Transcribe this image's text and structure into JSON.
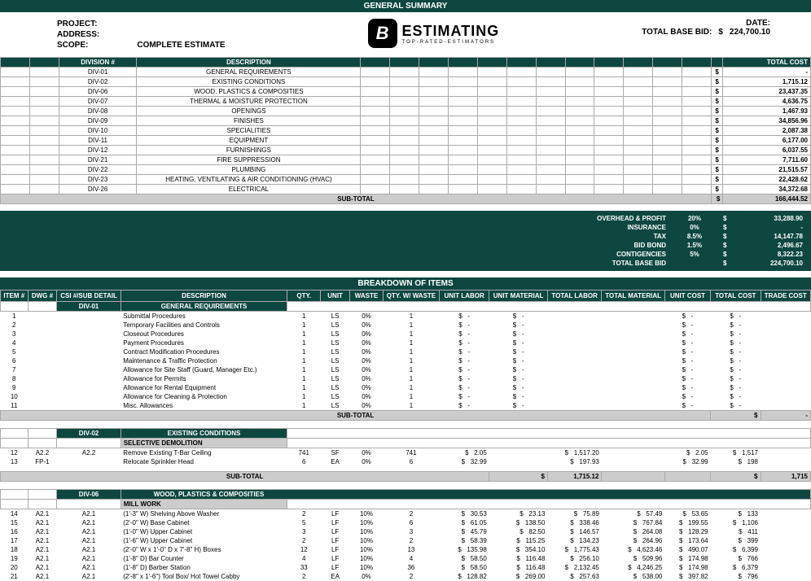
{
  "header": {
    "general_summary": "GENERAL SUMMARY",
    "project_lbl": "PROJECT:",
    "address_lbl": "ADDRESS:",
    "scope_lbl": "SCOPE:",
    "scope_val": "COMPLETE ESTIMATE",
    "logo_main": "ESTIMATING",
    "logo_sub": "TOP-RATED-ESTIMATORS",
    "date_lbl": "DATE:",
    "tbb_lbl": "TOTAL BASE BID:",
    "tbb_dollar": "$",
    "tbb_val": "224,700.10"
  },
  "summary_cols": {
    "division": "DIVISION #",
    "description": "DESCRIPTION",
    "total_cost": "TOTAL COST"
  },
  "summary_rows": [
    {
      "div": "DIV-01",
      "desc": "GENERAL REQUIREMENTS",
      "cost": "-"
    },
    {
      "div": "DIV-02",
      "desc": "EXISTING CONDITIONS",
      "cost": "1,715.12"
    },
    {
      "div": "DIV-06",
      "desc": "WOOD, PLASTICS & COMPOSITIES",
      "cost": "23,437.35"
    },
    {
      "div": "DIV-07",
      "desc": "THERMAL & MOISTURE PROTECTION",
      "cost": "4,636.75"
    },
    {
      "div": "DIV-08",
      "desc": "OPENINGS",
      "cost": "1,467.93"
    },
    {
      "div": "DIV-09",
      "desc": "FINISHES",
      "cost": "34,856.96"
    },
    {
      "div": "DIV-10",
      "desc": "SPECIALITIES",
      "cost": "2,087.38"
    },
    {
      "div": "DIV-11",
      "desc": "EQUIPMENT",
      "cost": "6,177.00"
    },
    {
      "div": "DIV-12",
      "desc": "FURNISHINGS",
      "cost": "6,037.55"
    },
    {
      "div": "DIV-21",
      "desc": "FIRE SUPPRESSION",
      "cost": "7,711.60"
    },
    {
      "div": "DIV-22",
      "desc": "PLUMBING",
      "cost": "21,515.57"
    },
    {
      "div": "DIV-23",
      "desc": "HEATING, VENTILATING & AIR CONDITIONING (HVAC)",
      "cost": "22,428.62"
    },
    {
      "div": "DIV-26",
      "desc": "ELECTRICAL",
      "cost": "34,372.68"
    }
  ],
  "subtotal_lbl": "SUB-TOTAL",
  "summary_subtotal": "166,444.52",
  "adjustments": [
    {
      "lbl": "OVERHEAD & PROFIT",
      "pct": "20%",
      "amt": "33,288.90"
    },
    {
      "lbl": "INSURANCE",
      "pct": "0%",
      "amt": "-"
    },
    {
      "lbl": "TAX",
      "pct": "8.5%",
      "amt": "14,147.78"
    },
    {
      "lbl": "BID BOND",
      "pct": "1.5%",
      "amt": "2,496.67"
    },
    {
      "lbl": "CONTIGENCIES",
      "pct": "5%",
      "amt": "8,322.23"
    },
    {
      "lbl": "TOTAL BASE BID",
      "pct": "",
      "amt": "224,700.10"
    }
  ],
  "breakdown_title": "BREAKDOWN OF ITEMS",
  "bcol": {
    "item": "ITEM #",
    "dwg": "DWG #",
    "csi": "CSI #/SUB DETAIL",
    "desc": "DESCRIPTION",
    "qty": "QTY.",
    "unit": "UNIT",
    "waste": "WASTE",
    "qtyw": "QTY. W/ WASTE",
    "ul": "UNIT LABOR",
    "um": "UNIT MATERIAL",
    "tl": "TOTAL LABOR",
    "tm": "TOTAL MATERIAL",
    "uc": "UNIT COST",
    "tc": "TOTAL COST",
    "trade": "TRADE COST"
  },
  "div01": {
    "code": "DIV-01",
    "name": "GENERAL REQUIREMENTS",
    "rows": [
      {
        "n": "1",
        "desc": "Submittal Procedures"
      },
      {
        "n": "2",
        "desc": "Temporary Facilities and Controls"
      },
      {
        "n": "3",
        "desc": "Closeout Procedures"
      },
      {
        "n": "4",
        "desc": "Payment Procedures"
      },
      {
        "n": "5",
        "desc": "Contract Modification Procedures"
      },
      {
        "n": "6",
        "desc": "Maintenance & Traffic Protection"
      },
      {
        "n": "7",
        "desc": "Allowance for Site Staff (Guard, Manager Etc.)"
      },
      {
        "n": "8",
        "desc": "Allowance for Permits"
      },
      {
        "n": "9",
        "desc": "Allowance for Rental Equipment"
      },
      {
        "n": "10",
        "desc": "Allowance for Cleaning & Protection"
      },
      {
        "n": "11",
        "desc": "Misc. Allowances"
      }
    ],
    "subtotal": "-"
  },
  "div02": {
    "code": "DIV-02",
    "name": "EXISTING CONDITIONS",
    "sub": "SELECTIVE DEMOLITION",
    "rows": [
      {
        "n": "12",
        "dwg": "A2.2",
        "csi": "A2.2",
        "desc": "Remove Existing T-Bar Ceiling",
        "qty": "741",
        "unit": "SF",
        "waste": "0%",
        "qtyw": "741",
        "ul": "2.05",
        "tl": "1,517.20",
        "uc": "2.05",
        "tc": "1,517"
      },
      {
        "n": "13",
        "dwg": "FP-1",
        "csi": "",
        "desc": "Relocate Sprinkler Head",
        "qty": "6",
        "unit": "EA",
        "waste": "0%",
        "qtyw": "6",
        "ul": "32.99",
        "tl": "197.93",
        "uc": "32.99",
        "tc": "198"
      }
    ],
    "subtotal_tl": "1,715.12",
    "subtotal": "1,715"
  },
  "div06": {
    "code": "DIV-06",
    "name": "WOOD, PLASTICS & COMPOSITIES",
    "sub": "MILL WORK",
    "rows": [
      {
        "n": "14",
        "dwg": "A2.1",
        "csi": "A2.1",
        "desc": "(1'-3\" W) Shelving Above Washer",
        "qty": "2",
        "unit": "LF",
        "waste": "10%",
        "qtyw": "2",
        "ul": "30.53",
        "um": "23.13",
        "tl": "75.89",
        "tm": "57.49",
        "uc": "53.65",
        "tc": "133"
      },
      {
        "n": "15",
        "dwg": "A2.1",
        "csi": "A2.1",
        "desc": "(2'-0\" W) Base Cabinet",
        "qty": "5",
        "unit": "LF",
        "waste": "10%",
        "qtyw": "6",
        "ul": "61.05",
        "um": "138.50",
        "tl": "338.46",
        "tm": "767.84",
        "uc": "199.55",
        "tc": "1,106"
      },
      {
        "n": "16",
        "dwg": "A2.1",
        "csi": "A2.1",
        "desc": "(1'-0\" W) Upper Cabinet",
        "qty": "3",
        "unit": "LF",
        "waste": "10%",
        "qtyw": "3",
        "ul": "45.79",
        "um": "82.50",
        "tl": "146.57",
        "tm": "264.08",
        "uc": "128.29",
        "tc": "411"
      },
      {
        "n": "17",
        "dwg": "A2.1",
        "csi": "A2.1",
        "desc": "(1'-6\" W) Upper Cabinet",
        "qty": "2",
        "unit": "LF",
        "waste": "10%",
        "qtyw": "2",
        "ul": "58.39",
        "um": "115.25",
        "tl": "134.23",
        "tm": "264.96",
        "uc": "173.64",
        "tc": "399"
      },
      {
        "n": "18",
        "dwg": "A2.1",
        "csi": "A2.1",
        "desc": "(2'-0\" W x 1'-0\" D x 7'-8\" H) Boxes",
        "qty": "12",
        "unit": "LF",
        "waste": "10%",
        "qtyw": "13",
        "ul": "135.98",
        "um": "354.10",
        "tl": "1,775.43",
        "tm": "4,623.46",
        "uc": "490.07",
        "tc": "6,399"
      },
      {
        "n": "19",
        "dwg": "A2.1",
        "csi": "A2.1",
        "desc": "(1'-8\" D) Bar Counter",
        "qty": "4",
        "unit": "LF",
        "waste": "10%",
        "qtyw": "4",
        "ul": "58.50",
        "um": "116.48",
        "tl": "256.10",
        "tm": "509.96",
        "uc": "174.98",
        "tc": "766"
      },
      {
        "n": "20",
        "dwg": "A2.1",
        "csi": "A2.1",
        "desc": "(1'-8\" D) Barber Station",
        "qty": "33",
        "unit": "LF",
        "waste": "10%",
        "qtyw": "36",
        "ul": "58.50",
        "um": "116.48",
        "tl": "2,132.45",
        "tm": "4,246.25",
        "uc": "174.98",
        "tc": "6,379"
      },
      {
        "n": "21",
        "dwg": "A2.1",
        "csi": "A2.1",
        "desc": "(2'-8\" x 1'-6\") Tool Box/ Hot Towel Cabby",
        "qty": "2",
        "unit": "EA",
        "waste": "0%",
        "qtyw": "2",
        "ul": "128.82",
        "um": "269.00",
        "tl": "257.63",
        "tm": "538.00",
        "uc": "397.82",
        "tc": "796"
      }
    ]
  }
}
